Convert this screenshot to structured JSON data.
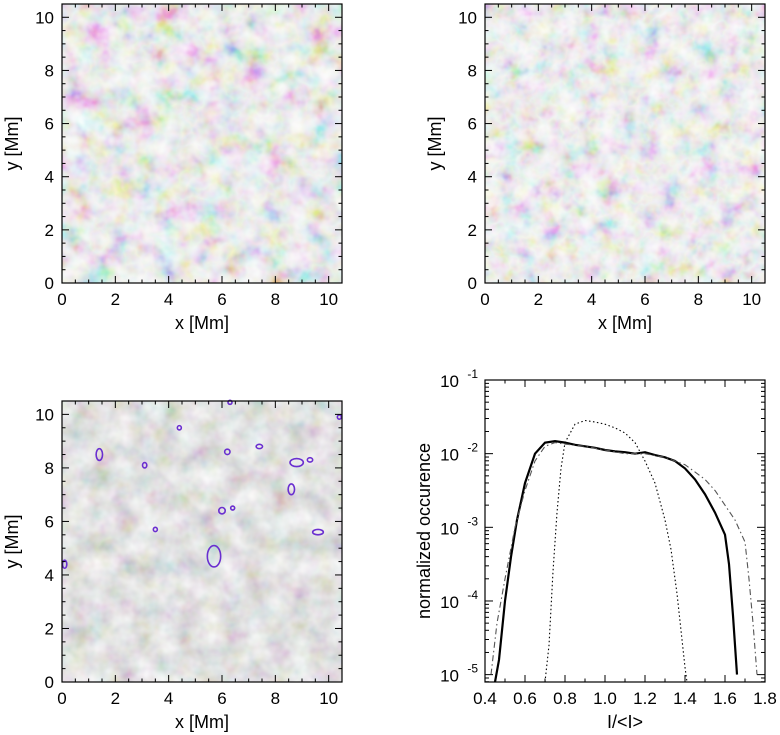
{
  "panels": [
    {
      "id": "granulation-a",
      "xlabel": "x  [Mm]",
      "ylabel": "y  [Mm]",
      "xticks": [
        "0",
        "2",
        "4",
        "6",
        "8",
        "10"
      ],
      "yticks": [
        "0",
        "2",
        "4",
        "6",
        "8",
        "10"
      ],
      "xlim": [
        0,
        10.5
      ],
      "ylim": [
        0,
        10.5
      ]
    },
    {
      "id": "granulation-b",
      "xlabel": "x  [Mm]",
      "ylabel": "y  [Mm]",
      "xticks": [
        "0",
        "2",
        "4",
        "6",
        "8",
        "10"
      ],
      "yticks": [
        "0",
        "2",
        "4",
        "6",
        "8",
        "10"
      ],
      "xlim": [
        0,
        10.5
      ],
      "ylim": [
        0,
        10.5
      ]
    },
    {
      "id": "granulation-contours",
      "xlabel": "x  [Mm]",
      "ylabel": "y  [Mm]",
      "xticks": [
        "0",
        "2",
        "4",
        "6",
        "8",
        "10"
      ],
      "yticks": [
        "0",
        "2",
        "4",
        "6",
        "8",
        "10"
      ],
      "xlim": [
        0,
        10.5
      ],
      "ylim": [
        0,
        10.5
      ],
      "contour_color": "#6a2fd0"
    }
  ],
  "chart_data": {
    "type": "line",
    "xlabel": "I/<I>",
    "ylabel": "normalized occurence",
    "xlim": [
      0.4,
      1.8
    ],
    "ylim_log": [
      -5.1,
      -1
    ],
    "xticks": [
      "0.4",
      "0.6",
      "0.8",
      "1.0",
      "1.2",
      "1.4",
      "1.6",
      "1.8"
    ],
    "yticks": [
      {
        "base": "10",
        "exp": "-1",
        "value": -1
      },
      {
        "base": "10",
        "exp": "-2",
        "value": -2
      },
      {
        "base": "10",
        "exp": "-3",
        "value": -3
      },
      {
        "base": "10",
        "exp": "-4",
        "value": -4
      },
      {
        "base": "10",
        "exp": "-5",
        "value": -5
      }
    ],
    "series": [
      {
        "style": "solid",
        "x": [
          0.45,
          0.47,
          0.5,
          0.53,
          0.56,
          0.6,
          0.65,
          0.7,
          0.75,
          0.8,
          0.85,
          0.9,
          0.95,
          1.0,
          1.05,
          1.1,
          1.15,
          1.2,
          1.25,
          1.3,
          1.35,
          1.4,
          1.45,
          1.5,
          1.55,
          1.6,
          1.62,
          1.64,
          1.66
        ],
        "y_log": [
          -5.1,
          -4.8,
          -4.0,
          -3.4,
          -2.9,
          -2.4,
          -2.0,
          -1.85,
          -1.83,
          -1.85,
          -1.88,
          -1.9,
          -1.92,
          -1.95,
          -1.97,
          -1.98,
          -2.0,
          -1.98,
          -2.02,
          -2.05,
          -2.1,
          -2.2,
          -2.35,
          -2.55,
          -2.8,
          -3.1,
          -3.5,
          -4.2,
          -5.0
        ]
      },
      {
        "style": "dotted",
        "x": [
          0.7,
          0.72,
          0.74,
          0.76,
          0.78,
          0.8,
          0.85,
          0.9,
          0.95,
          1.0,
          1.05,
          1.1,
          1.15,
          1.2,
          1.25,
          1.3,
          1.33,
          1.36,
          1.38,
          1.4,
          1.41
        ],
        "y_log": [
          -5.1,
          -4.6,
          -3.6,
          -2.8,
          -2.2,
          -1.85,
          -1.6,
          -1.55,
          -1.57,
          -1.6,
          -1.65,
          -1.72,
          -1.85,
          -2.1,
          -2.4,
          -2.9,
          -3.3,
          -3.9,
          -4.4,
          -4.9,
          -5.1
        ]
      },
      {
        "style": "dash-dot",
        "x": [
          0.43,
          0.46,
          0.5,
          0.55,
          0.6,
          0.65,
          0.7,
          0.75,
          0.8,
          0.9,
          1.0,
          1.1,
          1.2,
          1.3,
          1.4,
          1.5,
          1.55,
          1.6,
          1.65,
          1.7,
          1.72,
          1.74,
          1.76
        ],
        "y_log": [
          -5.0,
          -4.3,
          -3.7,
          -3.0,
          -2.5,
          -2.1,
          -1.9,
          -1.85,
          -1.87,
          -1.9,
          -1.95,
          -2.0,
          -2.0,
          -2.05,
          -2.15,
          -2.35,
          -2.5,
          -2.7,
          -2.9,
          -3.2,
          -3.7,
          -4.3,
          -5.0
        ]
      }
    ]
  }
}
